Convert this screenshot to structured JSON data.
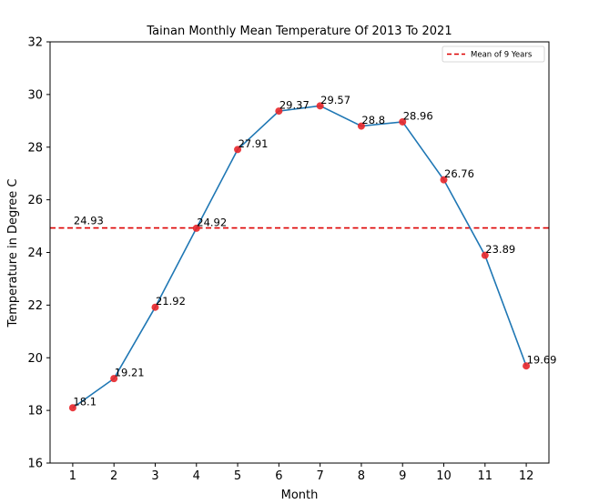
{
  "chart_data": {
    "type": "line",
    "title": "Tainan Monthly Mean Temperature Of 2013 To 2021",
    "xlabel": "Month",
    "ylabel": "Temperature in Degree C",
    "categories": [
      "1",
      "2",
      "3",
      "4",
      "5",
      "6",
      "7",
      "8",
      "9",
      "10",
      "11",
      "12"
    ],
    "x": [
      1,
      2,
      3,
      4,
      5,
      6,
      7,
      8,
      9,
      10,
      11,
      12
    ],
    "values": [
      18.1,
      19.21,
      21.92,
      24.92,
      27.91,
      29.37,
      29.57,
      28.8,
      28.96,
      26.76,
      23.89,
      19.69
    ],
    "data_labels": [
      "18.1",
      "19.21",
      "21.92",
      "24.92",
      "27.91",
      "29.37",
      "29.57",
      "28.8",
      "28.96",
      "26.76",
      "23.89",
      "19.69"
    ],
    "xlim": [
      0.45,
      12.55
    ],
    "ylim": [
      16,
      32
    ],
    "yticks": [
      16,
      18,
      20,
      22,
      24,
      26,
      28,
      30,
      32
    ],
    "ytick_labels": [
      "16",
      "18",
      "20",
      "22",
      "24",
      "26",
      "28",
      "30",
      "32"
    ],
    "mean": {
      "value": 24.93,
      "label": "24.93",
      "legend": "Mean of 9 Years",
      "color": "#dd0000",
      "style": "dashed"
    },
    "line_color": "#1f77b4",
    "marker_color": "#e8262a",
    "legend_position": "top-right",
    "grid": false
  }
}
